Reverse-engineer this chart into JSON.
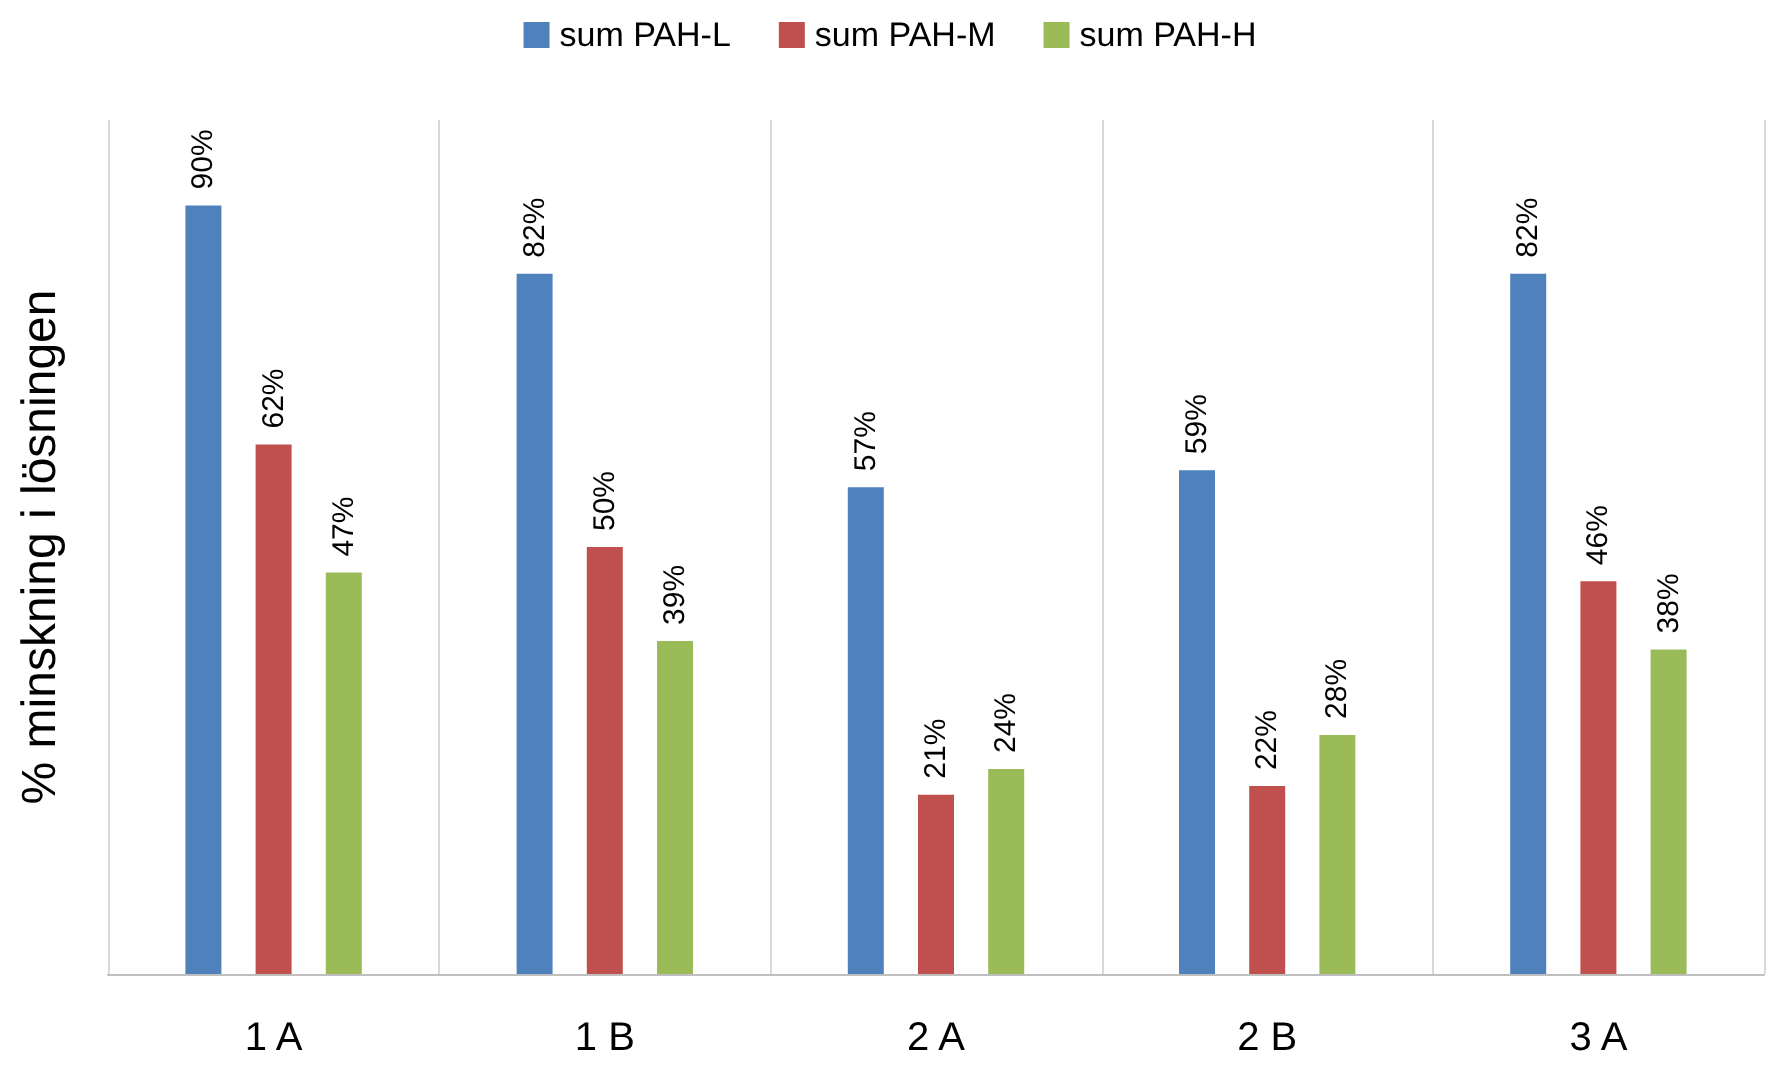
{
  "chart_data": {
    "type": "bar",
    "ylabel": "% minskning i lösningen",
    "categories": [
      "1 A",
      "1 B",
      "2 A",
      "2 B",
      "3 A"
    ],
    "series": [
      {
        "name": "sum PAH-L",
        "color": "#4f81bd",
        "values": [
          90,
          82,
          57,
          59,
          82
        ],
        "value_labels": [
          "90%",
          "82%",
          "57%",
          "59%",
          "82%"
        ]
      },
      {
        "name": "sum PAH-M",
        "color": "#c0504d",
        "values": [
          62,
          50,
          21,
          22,
          46
        ],
        "value_labels": [
          "62%",
          "50%",
          "21%",
          "22%",
          "46%"
        ]
      },
      {
        "name": "sum PAH-H",
        "color": "#9bbb59",
        "values": [
          47,
          39,
          24,
          28,
          38
        ],
        "value_labels": [
          "47%",
          "39%",
          "24%",
          "28%",
          "38%"
        ]
      }
    ],
    "legend": "top",
    "grid": false
  }
}
